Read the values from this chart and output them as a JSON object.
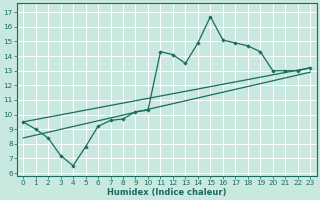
{
  "xlabel": "Humidex (Indice chaleur)",
  "bg_color": "#c8e8e0",
  "grid_color": "#ffffff",
  "line_color": "#1a6b60",
  "xlim": [
    -0.5,
    23.5
  ],
  "ylim": [
    5.8,
    17.6
  ],
  "xticks": [
    0,
    1,
    2,
    3,
    4,
    5,
    6,
    7,
    8,
    9,
    10,
    11,
    12,
    13,
    14,
    15,
    16,
    17,
    18,
    19,
    20,
    21,
    22,
    23
  ],
  "yticks": [
    6,
    7,
    8,
    9,
    10,
    11,
    12,
    13,
    14,
    15,
    16,
    17
  ],
  "line1_x": [
    0,
    1,
    2,
    3,
    4,
    5,
    6,
    7,
    8,
    9,
    10,
    11,
    12,
    13,
    14,
    15,
    16,
    17,
    18,
    19,
    20,
    21,
    22,
    23
  ],
  "line1_y": [
    9.5,
    9.0,
    8.4,
    7.2,
    6.5,
    7.8,
    9.2,
    9.6,
    9.7,
    10.2,
    10.3,
    14.3,
    14.1,
    13.5,
    14.9,
    16.7,
    15.1,
    14.9,
    14.7,
    14.3,
    13.0,
    13.0,
    13.0,
    13.2
  ],
  "line2_x": [
    0,
    23
  ],
  "line2_y": [
    9.5,
    13.2
  ],
  "line3_x": [
    0,
    23
  ],
  "line3_y": [
    8.4,
    12.9
  ],
  "marker": "D",
  "marker_size": 2.2,
  "linewidth": 0.9,
  "tick_fontsize": 5.2,
  "xlabel_fontsize": 6.0
}
